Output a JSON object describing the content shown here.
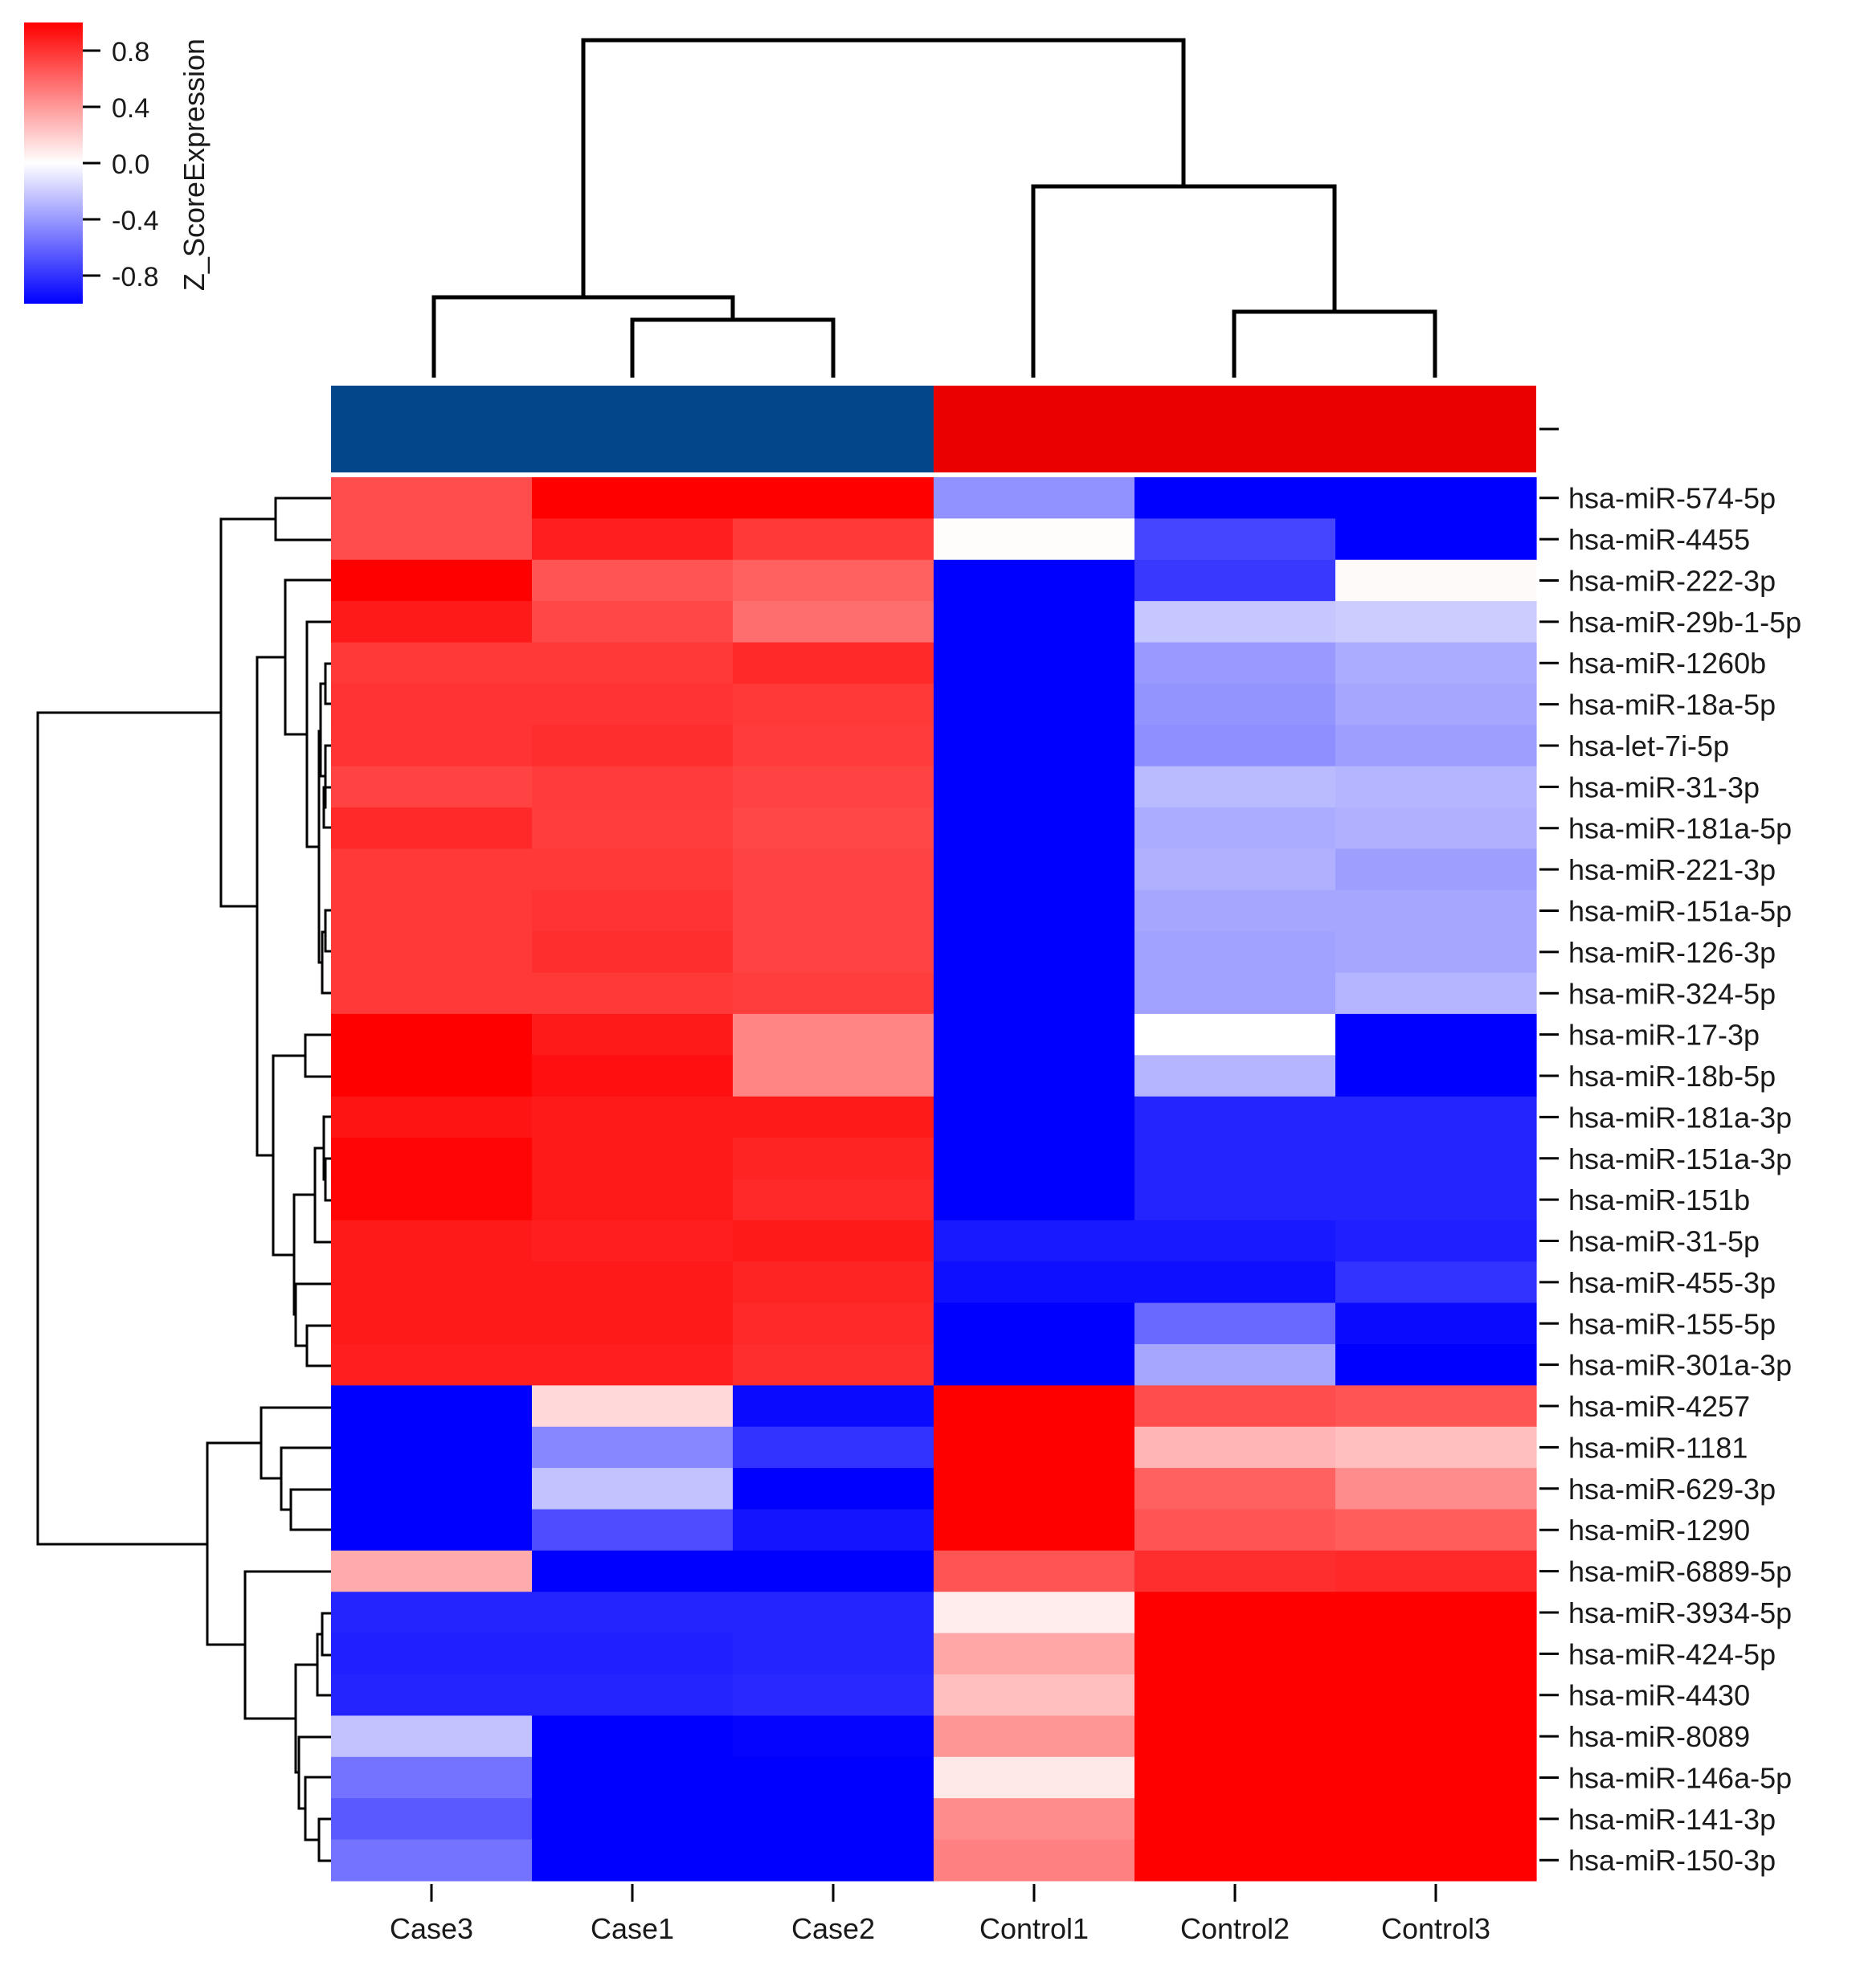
{
  "chart_data": {
    "type": "heatmap",
    "title": "",
    "colorbar": {
      "label": "Z_ScoreExpression",
      "ticks": [
        0.8,
        0.4,
        0.0,
        -0.4,
        -0.8
      ],
      "tick_labels": [
        "0.8",
        "0.4",
        "0.0",
        "-0.4",
        "-0.8"
      ],
      "vmin": -1.0,
      "vmax": 1.0,
      "colors": {
        "low": "#0000ff",
        "mid": "#ffffff",
        "high": "#ff0000"
      }
    },
    "columns": [
      "Case3",
      "Case1",
      "Case2",
      "Control1",
      "Control2",
      "Control3"
    ],
    "column_groups": [
      {
        "columns": [
          "Case3",
          "Case1",
          "Case2"
        ],
        "color": "#04468a"
      },
      {
        "columns": [
          "Control1",
          "Control2",
          "Control3"
        ],
        "color": "#ea0000"
      }
    ],
    "rows": [
      "hsa-miR-574-5p",
      "hsa-miR-4455",
      "hsa-miR-222-3p",
      "hsa-miR-29b-1-5p",
      "hsa-miR-1260b",
      "hsa-miR-18a-5p",
      "hsa-let-7i-5p",
      "hsa-miR-31-3p",
      "hsa-miR-181a-5p",
      "hsa-miR-221-3p",
      "hsa-miR-151a-5p",
      "hsa-miR-126-3p",
      "hsa-miR-324-5p",
      "hsa-miR-17-3p",
      "hsa-miR-18b-5p",
      "hsa-miR-181a-3p",
      "hsa-miR-151a-3p",
      "hsa-miR-151b",
      "hsa-miR-31-5p",
      "hsa-miR-455-3p",
      "hsa-miR-155-5p",
      "hsa-miR-301a-3p",
      "hsa-miR-4257",
      "hsa-miR-1181",
      "hsa-miR-629-3p",
      "hsa-miR-1290",
      "hsa-miR-6889-5p",
      "hsa-miR-3934-5p",
      "hsa-miR-424-5p",
      "hsa-miR-4430",
      "hsa-miR-8089",
      "hsa-miR-146a-5p",
      "hsa-miR-141-3p",
      "hsa-miR-150-3p"
    ],
    "values": [
      [
        0.7,
        1.0,
        1.0,
        -0.43,
        -1.0,
        -1.0
      ],
      [
        0.7,
        0.88,
        0.78,
        0.01,
        -0.73,
        -1.0
      ],
      [
        1.0,
        0.67,
        0.62,
        -1.0,
        -0.78,
        0.02
      ],
      [
        0.9,
        0.72,
        0.57,
        -1.0,
        -0.22,
        -0.2
      ],
      [
        0.78,
        0.78,
        0.84,
        -1.0,
        -0.4,
        -0.33
      ],
      [
        0.8,
        0.8,
        0.78,
        -1.0,
        -0.42,
        -0.35
      ],
      [
        0.8,
        0.82,
        0.77,
        -1.0,
        -0.44,
        -0.38
      ],
      [
        0.74,
        0.77,
        0.74,
        -1.0,
        -0.27,
        -0.29
      ],
      [
        0.84,
        0.76,
        0.72,
        -1.0,
        -0.33,
        -0.31
      ],
      [
        0.78,
        0.78,
        0.74,
        -1.0,
        -0.31,
        -0.38
      ],
      [
        0.78,
        0.8,
        0.74,
        -1.0,
        -0.35,
        -0.35
      ],
      [
        0.78,
        0.82,
        0.74,
        -1.0,
        -0.37,
        -0.35
      ],
      [
        0.78,
        0.78,
        0.76,
        -1.0,
        -0.37,
        -0.29
      ],
      [
        1.0,
        0.9,
        0.48,
        -1.0,
        0.0,
        -1.0
      ],
      [
        1.0,
        0.94,
        0.48,
        -1.0,
        -0.29,
        -1.0
      ],
      [
        0.92,
        0.9,
        0.9,
        -1.0,
        -0.86,
        -0.86
      ],
      [
        0.98,
        0.9,
        0.86,
        -1.0,
        -0.86,
        -0.86
      ],
      [
        0.98,
        0.9,
        0.84,
        -1.0,
        -0.86,
        -0.86
      ],
      [
        0.9,
        0.88,
        0.9,
        -0.9,
        -0.9,
        -0.88
      ],
      [
        0.9,
        0.9,
        0.86,
        -0.94,
        -0.94,
        -0.8
      ],
      [
        0.9,
        0.9,
        0.84,
        -1.0,
        -0.59,
        -0.96
      ],
      [
        0.88,
        0.88,
        0.82,
        -1.0,
        -0.35,
        -1.0
      ],
      [
        -1.0,
        0.15,
        -0.96,
        1.0,
        0.7,
        0.67
      ],
      [
        -1.0,
        -0.47,
        -0.8,
        1.0,
        0.29,
        0.25
      ],
      [
        -1.0,
        -0.24,
        -1.0,
        1.0,
        0.62,
        0.45
      ],
      [
        -1.0,
        -0.7,
        -0.92,
        1.0,
        0.67,
        0.64
      ],
      [
        0.33,
        -1.0,
        -1.0,
        0.67,
        0.82,
        0.84
      ],
      [
        -0.86,
        -0.86,
        -0.86,
        0.07,
        1.0,
        1.0
      ],
      [
        -0.88,
        -0.88,
        -0.86,
        0.35,
        1.0,
        1.0
      ],
      [
        -0.86,
        -0.86,
        -0.84,
        0.25,
        1.0,
        1.0
      ],
      [
        -0.24,
        -1.0,
        -0.98,
        0.41,
        1.0,
        1.0
      ],
      [
        -0.55,
        -1.0,
        -1.0,
        0.09,
        1.0,
        1.0
      ],
      [
        -0.65,
        -1.0,
        -1.0,
        0.45,
        1.0,
        1.0
      ],
      [
        -0.55,
        -1.0,
        -1.0,
        0.5,
        1.0,
        1.0
      ]
    ]
  }
}
